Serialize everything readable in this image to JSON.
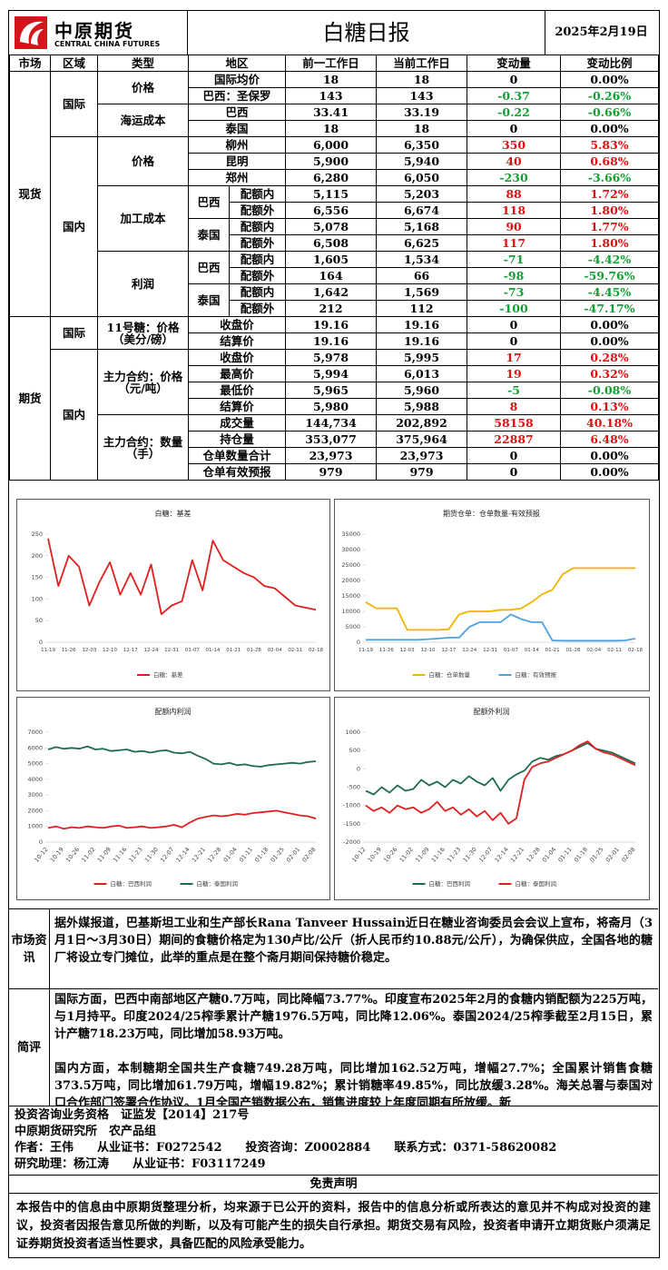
{
  "header": {
    "logo_cn": "中原期货",
    "logo_en": "CENTRAL CHINA FUTURES",
    "title": "白糖日报",
    "date": "2025年2月19日"
  },
  "table": {
    "header": [
      "市场",
      "区域",
      "类型",
      "地区",
      "前一工作日",
      "当前工作日",
      "变动量",
      "变动比例"
    ],
    "markets": [
      "现货",
      "期货"
    ],
    "regions": [
      "国际",
      "国内",
      "国际",
      "国内"
    ],
    "types": [
      "价格",
      "海运成本",
      "价格",
      "加工成本",
      "利润",
      "11号糖：价格（美分/磅）",
      "主力合约：价格（元/吨）",
      "主力合约：数量（手）"
    ],
    "origins": [
      "巴西",
      "泰国",
      "巴西",
      "泰国"
    ],
    "rows": [
      [
        "国际均价",
        "18",
        "18",
        "0",
        "0.00%"
      ],
      [
        "巴西：圣保罗",
        "143",
        "143",
        "-0.37",
        "-0.26%"
      ],
      [
        "巴西",
        "33.41",
        "33.19",
        "-0.22",
        "-0.66%"
      ],
      [
        "泰国",
        "18",
        "18",
        "0",
        "0.00%"
      ],
      [
        "柳州",
        "6,000",
        "6,350",
        "350",
        "5.83%"
      ],
      [
        "昆明",
        "5,900",
        "5,940",
        "40",
        "0.68%"
      ],
      [
        "郑州",
        "6,280",
        "6,050",
        "-230",
        "-3.66%"
      ],
      [
        "配额内",
        "5,115",
        "5,203",
        "88",
        "1.72%"
      ],
      [
        "配额外",
        "6,556",
        "6,674",
        "118",
        "1.80%"
      ],
      [
        "配额内",
        "5,078",
        "5,168",
        "90",
        "1.77%"
      ],
      [
        "配额外",
        "6,508",
        "6,625",
        "117",
        "1.80%"
      ],
      [
        "配额内",
        "1,605",
        "1,534",
        "-71",
        "-4.42%"
      ],
      [
        "配额外",
        "164",
        "66",
        "-98",
        "-59.76%"
      ],
      [
        "配额内",
        "1,642",
        "1,569",
        "-73",
        "-4.45%"
      ],
      [
        "配额外",
        "212",
        "112",
        "-100",
        "-47.17%"
      ],
      [
        "收盘价",
        "19.16",
        "19.16",
        "0",
        "0.00%"
      ],
      [
        "结算价",
        "19.16",
        "19.16",
        "0",
        "0.00%"
      ],
      [
        "收盘价",
        "5,978",
        "5,995",
        "17",
        "0.28%"
      ],
      [
        "最高价",
        "5,994",
        "6,013",
        "19",
        "0.32%"
      ],
      [
        "最低价",
        "5,965",
        "5,960",
        "-5",
        "-0.08%"
      ],
      [
        "结算价",
        "5,980",
        "5,988",
        "8",
        "0.13%"
      ],
      [
        "成交量",
        "144,734",
        "202,892",
        "58158",
        "40.18%"
      ],
      [
        "持仓量",
        "353,077",
        "375,964",
        "22887",
        "6.48%"
      ],
      [
        "仓单数量合计",
        "23,973",
        "23,973",
        "0",
        "0.00%"
      ],
      [
        "仓单有效预报",
        "979",
        "979",
        "0",
        "0.00%"
      ]
    ]
  },
  "chart_data": [
    {
      "type": "line",
      "title": "白糖：基差",
      "categories": [
        "11-19",
        null,
        "11-26",
        null,
        "12-03",
        null,
        "12-10",
        null,
        "12-17",
        null,
        "12-24",
        null,
        "12-31",
        null,
        "01-07",
        null,
        "01-14",
        null,
        "01-21",
        null,
        "01-28",
        null,
        "02-04",
        null,
        "02-11",
        null,
        "02-18"
      ],
      "series": [
        {
          "name": "白糖：基差",
          "color": "#e02020",
          "values": [
            240,
            130,
            200,
            175,
            85,
            140,
            185,
            110,
            160,
            110,
            180,
            65,
            85,
            95,
            190,
            120,
            235,
            190,
            175,
            160,
            150,
            130,
            125,
            105,
            85,
            80,
            75
          ]
        }
      ],
      "ylim": [
        0,
        250
      ],
      "yticks": [
        0,
        50,
        100,
        150,
        200,
        250
      ],
      "legend": "bottom"
    },
    {
      "type": "line",
      "title": "期货仓单：仓单数量-有效预报",
      "categories": [
        "11-19",
        null,
        "11-26",
        null,
        "12-03",
        null,
        "12-10",
        null,
        "12-17",
        null,
        "12-24",
        null,
        "12-31",
        null,
        "01-07",
        null,
        "01-14",
        null,
        "01-21",
        null,
        "01-28",
        null,
        "02-04",
        null,
        "02-11",
        null,
        "02-18"
      ],
      "series": [
        {
          "name": "白糖：仓单数量",
          "color": "#f0b400",
          "values": [
            13000,
            11000,
            11000,
            11000,
            4000,
            4000,
            4000,
            4000,
            4200,
            9000,
            10000,
            10000,
            10000,
            10500,
            10500,
            11000,
            13000,
            15500,
            17000,
            22000,
            24000,
            24000,
            24000,
            24000,
            24000,
            24000,
            24000
          ]
        },
        {
          "name": "白糖：有效预报",
          "color": "#4fa3e0",
          "values": [
            800,
            800,
            800,
            800,
            800,
            800,
            1000,
            1200,
            1500,
            1500,
            5000,
            6500,
            6500,
            6500,
            9000,
            7500,
            6500,
            6500,
            600,
            500,
            500,
            500,
            500,
            500,
            500,
            600,
            1200
          ]
        }
      ],
      "ylim": [
        0,
        35000
      ],
      "yticks": [
        0,
        5000,
        10000,
        15000,
        20000,
        25000,
        30000,
        35000
      ],
      "legend": "bottom"
    },
    {
      "type": "line",
      "title": "配额内利润",
      "categories": [
        "10-12",
        null,
        "10-19",
        null,
        "10-26",
        null,
        "11-02",
        null,
        "11-09",
        null,
        "11-16",
        null,
        "11-23",
        null,
        "11-30",
        null,
        "12-07",
        null,
        "12-14",
        null,
        "12-21",
        null,
        "12-28",
        null,
        "01-04",
        null,
        "01-11",
        null,
        "01-18",
        null,
        "01-25",
        null,
        "02-01",
        null,
        "02-08"
      ],
      "series": [
        {
          "name": "白糖：巴西利润",
          "color": "#e02020",
          "values": [
            900,
            1000,
            850,
            950,
            900,
            1000,
            950,
            900,
            1000,
            1050,
            900,
            950,
            1000,
            900,
            950,
            1000,
            1100,
            950,
            1250,
            1500,
            1600,
            1700,
            1650,
            1700,
            1800,
            1750,
            1850,
            1900,
            1950,
            2000,
            1900,
            1800,
            1700,
            1650,
            1500
          ]
        },
        {
          "name": "白糖：泰国利润",
          "color": "#1e6b52",
          "values": [
            5900,
            6050,
            5950,
            6000,
            5950,
            6100,
            5900,
            5950,
            5800,
            5850,
            5900,
            5750,
            5800,
            5700,
            5800,
            5850,
            5700,
            5650,
            5750,
            5500,
            5300,
            5000,
            4950,
            5050,
            4900,
            4950,
            4850,
            4800,
            4900,
            4950,
            5000,
            5050,
            5000,
            5100,
            5150
          ]
        }
      ],
      "ylim": [
        0,
        7000
      ],
      "yticks": [
        0,
        1000,
        2000,
        3000,
        4000,
        5000,
        6000,
        7000
      ],
      "legend": "bottom"
    },
    {
      "type": "line",
      "title": "配额外利润",
      "categories": [
        "10-12",
        null,
        "10-19",
        null,
        "10-26",
        null,
        "11-02",
        null,
        "11-09",
        null,
        "11-16",
        null,
        "11-23",
        null,
        "11-30",
        null,
        "12-07",
        null,
        "12-14",
        null,
        "12-21",
        null,
        "12-28",
        null,
        "01-04",
        null,
        "01-11",
        null,
        "01-18",
        null,
        "01-25",
        null,
        "02-01",
        null,
        "02-08"
      ],
      "series": [
        {
          "name": "白糖：巴西利润",
          "color": "#1e6b52",
          "values": [
            -600,
            -700,
            -500,
            -650,
            -450,
            -600,
            -550,
            -300,
            -450,
            -350,
            -500,
            -300,
            -400,
            -200,
            -350,
            -450,
            -250,
            -600,
            -300,
            -150,
            -50,
            200,
            300,
            250,
            350,
            400,
            500,
            600,
            700,
            550,
            500,
            450,
            350,
            250,
            150
          ]
        },
        {
          "name": "白糖：泰国利润",
          "color": "#e02020",
          "values": [
            -1000,
            -1150,
            -1050,
            -1200,
            -1000,
            -1100,
            -1050,
            -1200,
            -1100,
            -900,
            -1150,
            -1050,
            -1250,
            -1100,
            -1300,
            -1150,
            -1400,
            -1200,
            -1500,
            -1350,
            -300,
            50,
            150,
            200,
            300,
            400,
            500,
            650,
            750,
            550,
            450,
            400,
            300,
            200,
            100
          ]
        }
      ],
      "ylim": [
        -2000,
        1000
      ],
      "yticks": [
        -2000,
        -1500,
        -1000,
        -500,
        0,
        500,
        1000
      ],
      "legend": "bottom"
    }
  ],
  "news": {
    "label": "市场资讯",
    "text": "据外媒报道，巴基斯坦工业和生产部长Rana Tanveer Hussain近日在糖业咨询委员会会议上宣布，将斋月（3月1日～3月30日）期间的食糖价格定为130卢比/公斤（折人民币约10.88元/公斤），为确保供应，全国各地的糖厂将设立专门摊位，此举的重点是在整个斋月期间保持糖价稳定。"
  },
  "comment": {
    "label": "简评",
    "paragraphs": [
      "国际方面，巴西中南部地区产糖0.7万吨，同比降幅73.77%。印度宣布2025年2月的食糖内销配额为225万吨，与1月持平。印度2024/25榨季累计产糖1976.5万吨，同比降12.06%。泰国2024/25榨季截至2月15日，累计产糖718.23万吨，同比增加58.93万吨。",
      "国内方面，本制糖期全国共生产食糖749.28万吨，同比增加162.52万吨，增幅27.7%；全国累计销售食糖373.5万吨，同比增加61.79万吨，增幅19.82%；累计销糖率49.85%，同比放缓3.28%。海关总署与泰国对口合作部门签署合作协议。1月全国产销数据公布，销售进度较上年度同期有所放缓。新"
    ]
  },
  "info": [
    "投资咨询业务资格　证监发【2014】217号",
    "中原期货研究所　农产品组",
    "作者：王伟　　从业证书：F0272542　　投资咨询：Z0002884　　联系方式：0371-58620082",
    "研究助理：杨江涛　　从业证书：F03117249"
  ],
  "disclaimer": {
    "title": "免责声明",
    "text": "本报告中的信息由中原期货整理分析，均来源于已公开的资料，报告中的信息分析或所表达的意见并不构成对投资的建议，投资者因报告意见所做的判断，以及有可能产生的损失自行承担。期货交易有风险，投资者申请开立期货账户须满足证券期货投资者适当性要求，具备匹配的风险承受能力。"
  }
}
